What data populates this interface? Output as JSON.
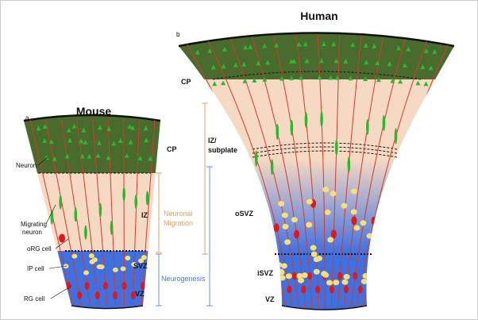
{
  "mouse": {
    "panel_label": "a",
    "title": "Mouse",
    "zones": {
      "cp": "CP",
      "iz": "IZ",
      "svz": "SVZ",
      "vz": "VZ"
    },
    "cell_labels": {
      "neuron": "Neuron",
      "migrating_neuron": [
        "Migrating",
        "neuron"
      ],
      "org_cell": "oRG cell",
      "ip_cell": "IP cell",
      "rg_cell": "RG cell"
    },
    "brackets": {
      "migration": [
        "Neuronal",
        "Migration"
      ],
      "neurogenesis": "Neurogenesis"
    }
  },
  "human": {
    "panel_label": "b",
    "title": "Human",
    "zones": {
      "cp": "CP",
      "iz_subplate": [
        "IZ/",
        "subplate"
      ],
      "osvz": "oSVZ",
      "isvz": "iSVZ",
      "vz": "VZ"
    }
  }
}
